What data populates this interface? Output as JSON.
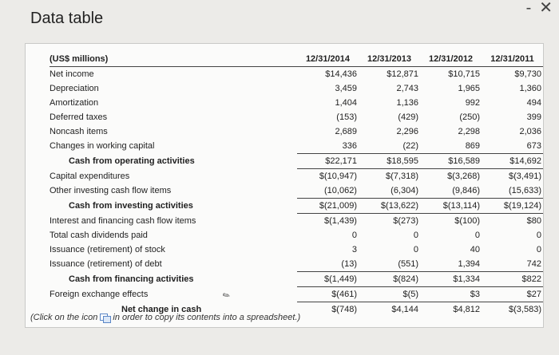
{
  "window": {
    "title": "Data table",
    "minimize_glyph": "-",
    "close_glyph": "✕"
  },
  "table": {
    "units_label": "(US$ millions)",
    "years": [
      "12/31/2014",
      "12/31/2013",
      "12/31/2012",
      "12/31/2011"
    ],
    "rows": [
      {
        "label": "Net income",
        "values": [
          "$14,436",
          "$12,871",
          "$10,715",
          "$9,730"
        ]
      },
      {
        "label": "Depreciation",
        "values": [
          "3,459",
          "2,743",
          "1,965",
          "1,360"
        ]
      },
      {
        "label": "Amortization",
        "values": [
          "1,404",
          "1,136",
          "992",
          "494"
        ]
      },
      {
        "label": "Deferred taxes",
        "values": [
          "(153)",
          "(429)",
          "(250)",
          "399"
        ]
      },
      {
        "label": "Noncash items",
        "values": [
          "2,689",
          "2,296",
          "2,298",
          "2,036"
        ]
      },
      {
        "label": "Changes in working capital",
        "values": [
          "336",
          "(22)",
          "869",
          "673"
        ]
      },
      {
        "label": "Cash from operating activities",
        "values": [
          "$22,171",
          "$18,595",
          "$16,589",
          "$14,692"
        ]
      },
      {
        "label": "Capital expenditures",
        "values": [
          "$(10,947)",
          "$(7,318)",
          "$(3,268)",
          "$(3,491)"
        ]
      },
      {
        "label": "Other investing cash flow items",
        "values": [
          "(10,062)",
          "(6,304)",
          "(9,846)",
          "(15,633)"
        ]
      },
      {
        "label": "Cash from investing activities",
        "values": [
          "$(21,009)",
          "$(13,622)",
          "$(13,114)",
          "$(19,124)"
        ]
      },
      {
        "label": "Interest and financing cash flow items",
        "values": [
          "$(1,439)",
          "$(273)",
          "$(100)",
          "$80"
        ]
      },
      {
        "label": "Total cash dividends paid",
        "values": [
          "0",
          "0",
          "0",
          "0"
        ]
      },
      {
        "label": "Issuance (retirement) of stock",
        "values": [
          "3",
          "0",
          "40",
          "0"
        ]
      },
      {
        "label": "Issuance (retirement) of debt",
        "values": [
          "(13)",
          "(551)",
          "1,394",
          "742"
        ]
      },
      {
        "label": "Cash from financing activities",
        "values": [
          "$(1,449)",
          "$(824)",
          "$1,334",
          "$822"
        ]
      },
      {
        "label": "Foreign exchange effects",
        "values": [
          "$(461)",
          "$(5)",
          "$3",
          "$27"
        ]
      },
      {
        "label": "Net change in cash",
        "values": [
          "$(748)",
          "$4,144",
          "$4,812",
          "$(3,583)"
        ]
      }
    ]
  },
  "footnote": {
    "before_icon": "(Click on the icon",
    "after_icon": "in order to copy its contents into a spreadsheet.)"
  },
  "icons": {
    "copy": "copy-icon"
  }
}
